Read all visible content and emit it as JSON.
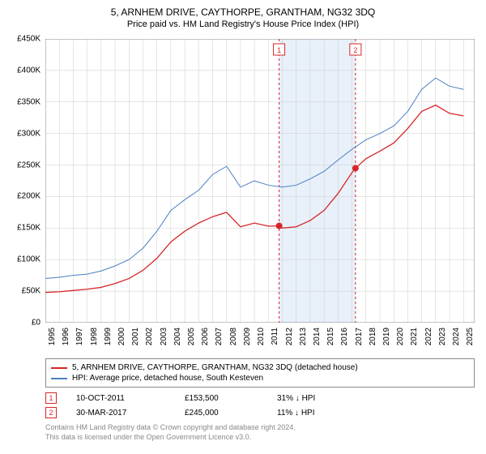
{
  "title": "5, ARNHEM DRIVE, CAYTHORPE, GRANTHAM, NG32 3DQ",
  "subtitle": "Price paid vs. HM Land Registry's House Price Index (HPI)",
  "chart": {
    "type": "line",
    "xlim": [
      1995,
      2025.8
    ],
    "ylim": [
      0,
      450000
    ],
    "ytick_step": 50000,
    "ytick_labels": [
      "£0",
      "£50K",
      "£100K",
      "£150K",
      "£200K",
      "£250K",
      "£300K",
      "£350K",
      "£400K",
      "£450K"
    ],
    "xtick_step": 1,
    "xtick_labels": [
      "1995",
      "1996",
      "1997",
      "1998",
      "1999",
      "2000",
      "2001",
      "2002",
      "2003",
      "2004",
      "2005",
      "2006",
      "2007",
      "2008",
      "2009",
      "2010",
      "2011",
      "2012",
      "2013",
      "2014",
      "2015",
      "2016",
      "2017",
      "2018",
      "2019",
      "2020",
      "2021",
      "2022",
      "2023",
      "2024",
      "2025"
    ],
    "grid_color": "#cccccc",
    "background_color": "#ffffff",
    "shaded_band": {
      "x_start": 2011.77,
      "x_end": 2017.25,
      "fill": "#e8f0fa"
    },
    "series": [
      {
        "name": "hpi",
        "color": "#4a7fc4",
        "width": 1,
        "points": [
          [
            1995,
            70000
          ],
          [
            1996,
            72000
          ],
          [
            1997,
            75000
          ],
          [
            1998,
            77000
          ],
          [
            1999,
            82000
          ],
          [
            2000,
            90000
          ],
          [
            2001,
            100000
          ],
          [
            2002,
            118000
          ],
          [
            2003,
            145000
          ],
          [
            2004,
            178000
          ],
          [
            2005,
            195000
          ],
          [
            2006,
            210000
          ],
          [
            2007,
            235000
          ],
          [
            2008,
            248000
          ],
          [
            2009,
            215000
          ],
          [
            2010,
            225000
          ],
          [
            2011,
            218000
          ],
          [
            2012,
            215000
          ],
          [
            2013,
            218000
          ],
          [
            2014,
            228000
          ],
          [
            2015,
            240000
          ],
          [
            2016,
            258000
          ],
          [
            2017,
            275000
          ],
          [
            2018,
            290000
          ],
          [
            2019,
            300000
          ],
          [
            2020,
            312000
          ],
          [
            2021,
            335000
          ],
          [
            2022,
            370000
          ],
          [
            2023,
            388000
          ],
          [
            2024,
            375000
          ],
          [
            2025,
            370000
          ]
        ]
      },
      {
        "name": "property",
        "color": "#d62728",
        "width": 1.3,
        "points": [
          [
            1995,
            48000
          ],
          [
            1996,
            49000
          ],
          [
            1997,
            51000
          ],
          [
            1998,
            53000
          ],
          [
            1999,
            56000
          ],
          [
            2000,
            62000
          ],
          [
            2001,
            70000
          ],
          [
            2002,
            83000
          ],
          [
            2003,
            102000
          ],
          [
            2004,
            128000
          ],
          [
            2005,
            145000
          ],
          [
            2006,
            158000
          ],
          [
            2007,
            168000
          ],
          [
            2008,
            175000
          ],
          [
            2009,
            152000
          ],
          [
            2010,
            158000
          ],
          [
            2011,
            153000
          ],
          [
            2011.77,
            153500
          ],
          [
            2012,
            150000
          ],
          [
            2013,
            152000
          ],
          [
            2014,
            162000
          ],
          [
            2015,
            178000
          ],
          [
            2016,
            205000
          ],
          [
            2017,
            238000
          ],
          [
            2017.25,
            245000
          ],
          [
            2018,
            260000
          ],
          [
            2019,
            272000
          ],
          [
            2020,
            285000
          ],
          [
            2021,
            308000
          ],
          [
            2022,
            335000
          ],
          [
            2023,
            345000
          ],
          [
            2024,
            332000
          ],
          [
            2025,
            328000
          ]
        ]
      }
    ],
    "markers": [
      {
        "num": "1",
        "x": 2011.77,
        "y": 153500,
        "color": "#d62728",
        "line_dash": true
      },
      {
        "num": "2",
        "x": 2017.25,
        "y": 245000,
        "color": "#d62728",
        "line_dash": true
      }
    ]
  },
  "legend": [
    {
      "color": "#d62728",
      "label": "5, ARNHEM DRIVE, CAYTHORPE, GRANTHAM, NG32 3DQ (detached house)"
    },
    {
      "color": "#4a7fc4",
      "label": "HPI: Average price, detached house, South Kesteven"
    }
  ],
  "sales": [
    {
      "num": "1",
      "color": "#d62728",
      "date": "10-OCT-2011",
      "price": "£153,500",
      "diff": "31% ↓ HPI"
    },
    {
      "num": "2",
      "color": "#d62728",
      "date": "30-MAR-2017",
      "price": "£245,000",
      "diff": "11% ↓ HPI"
    }
  ],
  "footer_line1": "Contains HM Land Registry data © Crown copyright and database right 2024.",
  "footer_line2": "This data is licensed under the Open Government Licence v3.0."
}
